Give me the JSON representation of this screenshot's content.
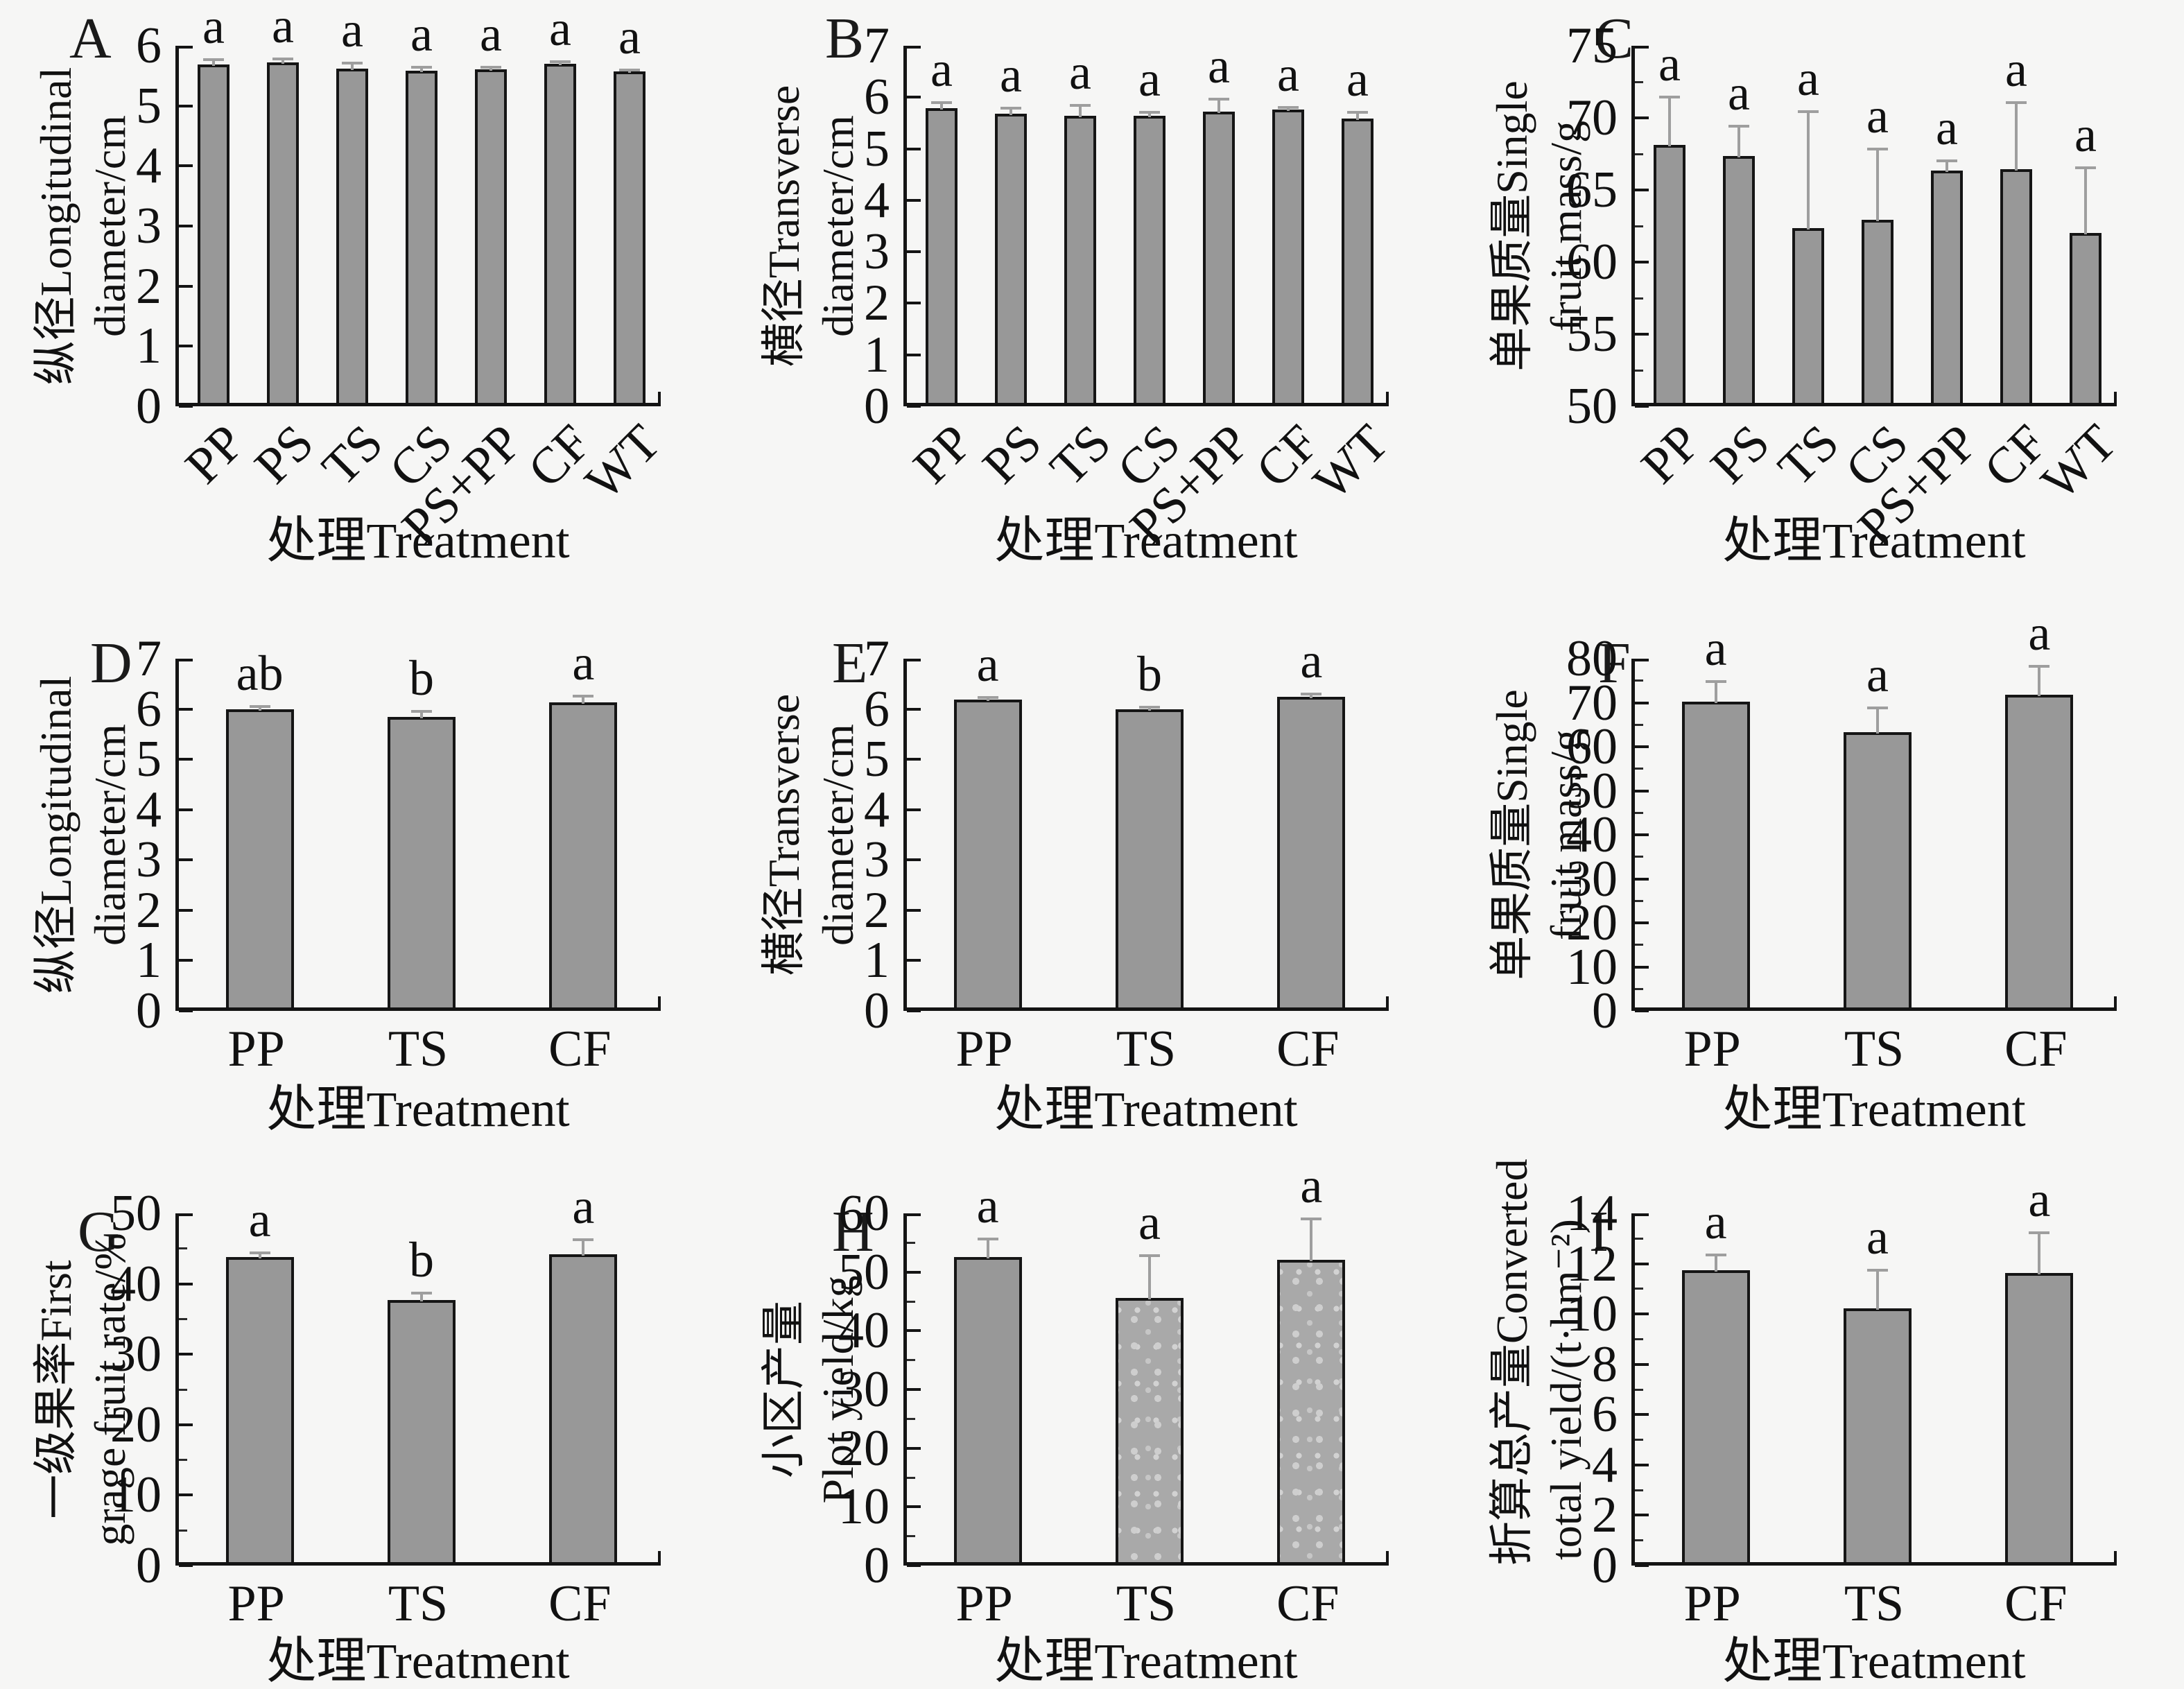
{
  "figure_xlabel": "处理Treatment",
  "colors": {
    "background": "#f6f6f5",
    "bar_fill": "#989898",
    "bar_fill_textured": "#a9a9a9",
    "texture_dot": "#cccccc",
    "bar_border": "#151515",
    "axis": "#141414",
    "error_bar": "#9e9e9e",
    "text": "#111111"
  },
  "chart_data": [
    {
      "type": "bar",
      "letter": "A",
      "ylabel_line1": "纵径Longitudinal",
      "ylabel_line2": "diameter/cm",
      "xlabel": "处理Treatment",
      "ymin": 0,
      "ymax": 6,
      "ytick_step": 1,
      "minor_step": null,
      "categories": [
        "PP",
        "PS",
        "TS",
        "CS",
        "PS+PP",
        "CF",
        "WT"
      ],
      "values": [
        5.63,
        5.66,
        5.56,
        5.53,
        5.55,
        5.64,
        5.51
      ],
      "errors": [
        0.08,
        0.06,
        0.09,
        0.05,
        0.04,
        0.04,
        0.03
      ],
      "sig_letters": [
        "a",
        "a",
        "a",
        "a",
        "a",
        "a",
        "a"
      ],
      "rotate_xticks": true,
      "textured": []
    },
    {
      "type": "bar",
      "letter": "B",
      "ylabel_line1": "横径Transverse",
      "ylabel_line2": "diameter/cm",
      "xlabel": "处理Treatment",
      "ymin": 0,
      "ymax": 7,
      "ytick_step": 1,
      "minor_step": null,
      "categories": [
        "PP",
        "PS",
        "TS",
        "CS",
        "PS+PP",
        "CF",
        "WT"
      ],
      "values": [
        5.72,
        5.62,
        5.57,
        5.57,
        5.65,
        5.69,
        5.52
      ],
      "errors": [
        0.11,
        0.1,
        0.21,
        0.07,
        0.24,
        0.05,
        0.12
      ],
      "sig_letters": [
        "a",
        "a",
        "a",
        "a",
        "a",
        "a",
        "a"
      ],
      "rotate_xticks": true,
      "textured": []
    },
    {
      "type": "bar",
      "letter": "C",
      "ylabel_line1": "单果质量Single",
      "ylabel_line2": "fruit mass/g",
      "xlabel": "处理Treatment",
      "ymin": 50,
      "ymax": 75,
      "ytick_step": 5,
      "minor_step": 2.5,
      "categories": [
        "PP",
        "PS",
        "TS",
        "CS",
        "PS+PP",
        "CF",
        "WT"
      ],
      "values": [
        67.9,
        67.1,
        62.1,
        62.7,
        66.1,
        66.2,
        61.8
      ],
      "errors": [
        3.3,
        2.1,
        8.1,
        4.9,
        0.7,
        4.6,
        4.5
      ],
      "sig_letters": [
        "a",
        "a",
        "a",
        "a",
        "a",
        "a",
        "a"
      ],
      "rotate_xticks": true,
      "textured": []
    },
    {
      "type": "bar",
      "letter": "D",
      "ylabel_line1": "纵径Longitudinal",
      "ylabel_line2": "diameter/cm",
      "xlabel": "处理Treatment",
      "ymin": 0,
      "ymax": 7,
      "ytick_step": 1,
      "minor_step": null,
      "categories": [
        "PP",
        "TS",
        "CF"
      ],
      "values": [
        5.93,
        5.78,
        6.07
      ],
      "errors": [
        0.05,
        0.1,
        0.12
      ],
      "sig_letters": [
        "ab",
        "b",
        "a"
      ],
      "rotate_xticks": false,
      "textured": []
    },
    {
      "type": "bar",
      "letter": "E",
      "ylabel_line1": "横径Transverse",
      "ylabel_line2": "diameter/cm",
      "xlabel": "处理Treatment",
      "ymin": 0,
      "ymax": 7,
      "ytick_step": 1,
      "minor_step": null,
      "categories": [
        "PP",
        "TS",
        "CF"
      ],
      "values": [
        6.12,
        5.93,
        6.17
      ],
      "errors": [
        0.04,
        0.04,
        0.06
      ],
      "sig_letters": [
        "a",
        "b",
        "a"
      ],
      "rotate_xticks": false,
      "textured": []
    },
    {
      "type": "bar",
      "letter": "F",
      "ylabel_line1": "单果质量Single",
      "ylabel_line2": "fruit mass/g",
      "xlabel": "处理Treatment",
      "ymin": 0,
      "ymax": 80,
      "ytick_step": 10,
      "minor_step": 5,
      "categories": [
        "PP",
        "TS",
        "CF"
      ],
      "values": [
        69.5,
        62.5,
        71.0
      ],
      "errors": [
        4.5,
        5.5,
        6.5
      ],
      "sig_letters": [
        "a",
        "a",
        "a"
      ],
      "rotate_xticks": false,
      "textured": []
    },
    {
      "type": "bar",
      "letter": "G",
      "ylabel_line1": "一级果率First",
      "ylabel_line2": "grage fruit rate/%",
      "xlabel": "处理Treatment",
      "ymin": 0,
      "ymax": 50,
      "ytick_step": 10,
      "minor_step": 5,
      "categories": [
        "PP",
        "TS",
        "CF"
      ],
      "values": [
        43.3,
        37.2,
        43.7
      ],
      "errors": [
        0.6,
        1.0,
        2.1
      ],
      "sig_letters": [
        "a",
        "b",
        "a"
      ],
      "rotate_xticks": false,
      "textured": []
    },
    {
      "type": "bar",
      "letter": "H",
      "ylabel_line1": "小区产量",
      "ylabel_line2": "Plot yield/kg",
      "xlabel": "处理Treatment",
      "ymin": 0,
      "ymax": 60,
      "ytick_step": 10,
      "minor_step": 5,
      "categories": [
        "PP",
        "TS",
        "CF"
      ],
      "values": [
        52.0,
        45.0,
        51.5
      ],
      "errors": [
        3.0,
        7.2,
        7.0
      ],
      "sig_letters": [
        "a",
        "a",
        "a"
      ],
      "rotate_xticks": false,
      "textured": [
        1,
        2
      ]
    },
    {
      "type": "bar",
      "letter": "I",
      "ylabel_line1": "折算总产量Converted",
      "ylabel_line2": "total yield/(t·hm⁻²)",
      "xlabel": "处理Treatment",
      "ymin": 0,
      "ymax": 14,
      "ytick_step": 2,
      "minor_step": 1,
      "categories": [
        "PP",
        "TS",
        "CF"
      ],
      "values": [
        11.6,
        10.1,
        11.5
      ],
      "errors": [
        0.6,
        1.5,
        1.6
      ],
      "sig_letters": [
        "a",
        "a",
        "a"
      ],
      "rotate_xticks": false,
      "textured": []
    }
  ]
}
